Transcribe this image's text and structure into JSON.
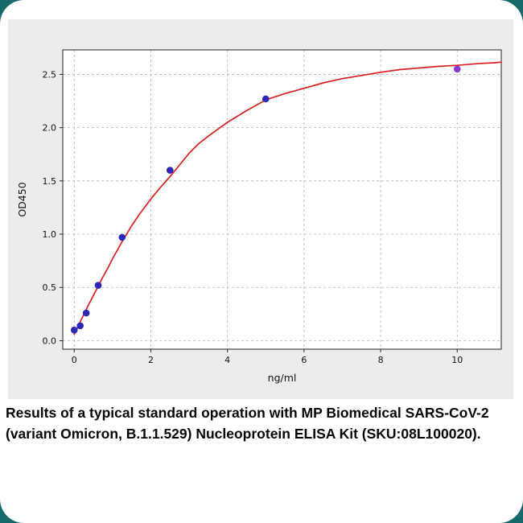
{
  "page": {
    "corner_accent_color": "#176a6a",
    "card_color": "#ffffff",
    "figure_bg_color": "#ececec"
  },
  "caption": "Results of a typical standard operation with MP Biomedical SARS-CoV-2 (variant Omicron, B.1.1.529) Nucleoprotein ELISA Kit (SKU:08L100020).",
  "chart_data": {
    "type": "scatter",
    "title": "",
    "xlabel": "ng/ml",
    "ylabel": "OD450",
    "xlim": [
      -0.3,
      11.15
    ],
    "ylim": [
      -0.08,
      2.73
    ],
    "xticks": [
      0,
      2,
      4,
      6,
      8,
      10
    ],
    "yticks": [
      0.0,
      0.5,
      1.0,
      1.5,
      2.0,
      2.5
    ],
    "grid": "dashed",
    "grid_color": "#b3b3b3",
    "plot_bg_color": "#ffffff",
    "border_color": "#222222",
    "marker_color": "#2d26b8",
    "fit_color": "#d62020",
    "points": [
      {
        "x": 0.0,
        "y": 0.1
      },
      {
        "x": 0.156,
        "y": 0.14
      },
      {
        "x": 0.313,
        "y": 0.26
      },
      {
        "x": 0.625,
        "y": 0.52
      },
      {
        "x": 1.25,
        "y": 0.97
      },
      {
        "x": 2.5,
        "y": 1.6
      },
      {
        "x": 5.0,
        "y": 2.27
      },
      {
        "x": 10.0,
        "y": 2.55,
        "color": "#8a36c9"
      }
    ],
    "fit_curve": {
      "x": [
        0,
        0.1,
        0.2,
        0.3,
        0.4,
        0.5,
        0.625,
        0.75,
        0.875,
        1.0,
        1.25,
        1.5,
        1.75,
        2.0,
        2.25,
        2.5,
        2.75,
        3.0,
        3.25,
        3.5,
        4.0,
        4.5,
        5.0,
        5.5,
        6.0,
        6.5,
        7.0,
        7.5,
        8.0,
        8.5,
        9.0,
        9.5,
        10.0,
        10.5,
        11.0,
        11.15
      ],
      "y": [
        0.06,
        0.135,
        0.21,
        0.285,
        0.355,
        0.425,
        0.51,
        0.6,
        0.68,
        0.77,
        0.93,
        1.08,
        1.21,
        1.33,
        1.44,
        1.54,
        1.65,
        1.76,
        1.85,
        1.92,
        2.05,
        2.16,
        2.26,
        2.32,
        2.37,
        2.42,
        2.46,
        2.49,
        2.52,
        2.545,
        2.56,
        2.575,
        2.585,
        2.6,
        2.61,
        2.615
      ]
    }
  }
}
